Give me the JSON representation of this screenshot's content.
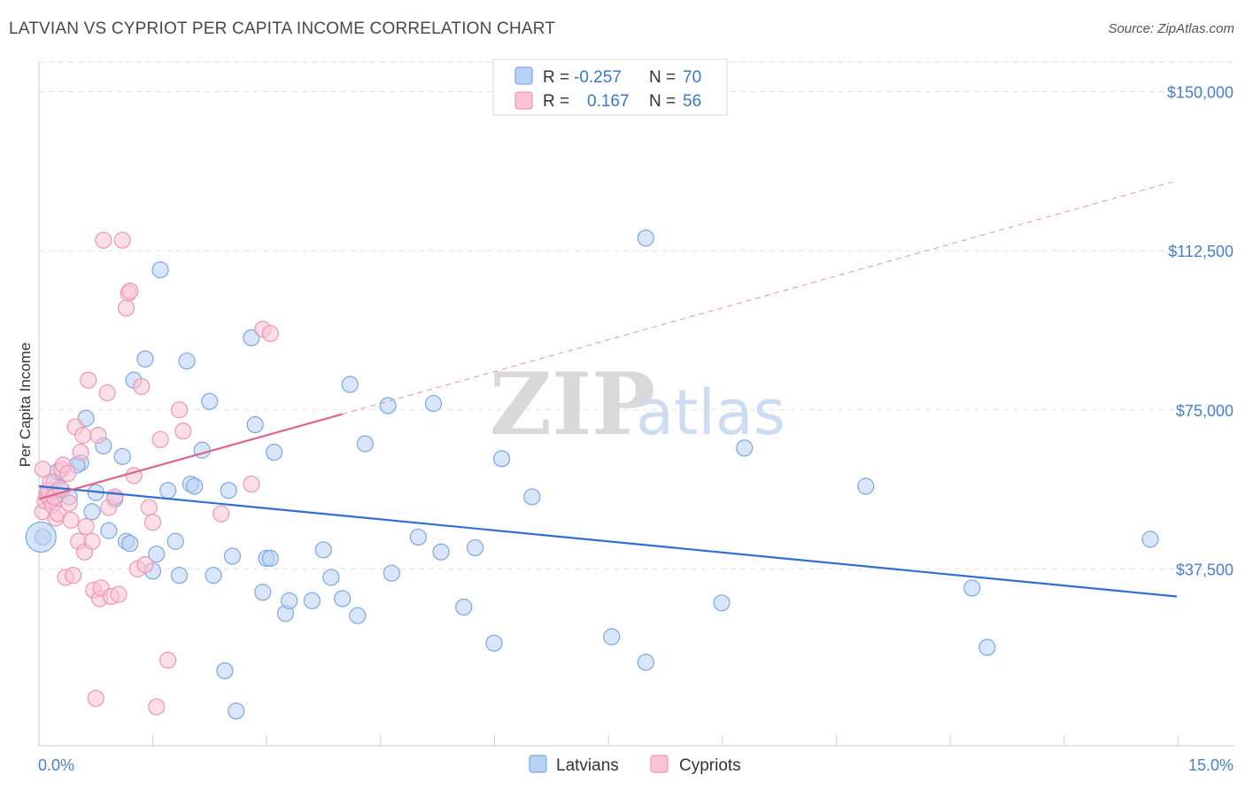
{
  "header": {
    "title": "LATVIAN VS CYPRIOT PER CAPITA INCOME CORRELATION CHART",
    "source": "Source: ZipAtlas.com"
  },
  "watermark": {
    "zip": "ZIP",
    "atlas": "atlas"
  },
  "legend": {
    "rows": [
      {
        "r_label": "R =",
        "r_value": "-0.257",
        "n_label": "N =",
        "n_value": "70"
      },
      {
        "r_label": "R =",
        "r_value": "0.167",
        "n_label": "N =",
        "n_value": "56"
      }
    ]
  },
  "bottom_legend": [
    "Latvians",
    "Cypriots"
  ],
  "colors": {
    "latvians_fill": "#b9d2f4",
    "latvians_stroke": "#7aa8e6",
    "latvians_line": "#2f6fd0",
    "cypriots_fill": "#f9c3d4",
    "cypriots_stroke": "#ee97b4",
    "cypriots_line": "#e0628c",
    "tick_label": "#4a7fc9"
  },
  "chart_data": {
    "type": "scatter",
    "title": "LATVIAN VS CYPRIOT PER CAPITA INCOME CORRELATION CHART",
    "xlabel": "",
    "ylabel": "Per Capita Income",
    "xlim": [
      0,
      15
    ],
    "ylim": [
      0,
      157000
    ],
    "x_tick_labels": [
      "0.0%",
      "15.0%"
    ],
    "y_ticks": [
      37500,
      75000,
      112500,
      150000
    ],
    "y_tick_labels": [
      "$37,500",
      "$75,000",
      "$112,500",
      "$150,000"
    ],
    "grid": true,
    "legend_position": "top-center",
    "series": [
      {
        "name": "Latvians",
        "R": -0.257,
        "N": 70,
        "trend": {
          "x": [
            0,
            15
          ],
          "y": [
            57000,
            31000
          ],
          "style": "solid"
        },
        "points": [
          [
            0.05,
            45000
          ],
          [
            0.12,
            55000
          ],
          [
            0.15,
            53500
          ],
          [
            0.2,
            58000
          ],
          [
            0.25,
            60500
          ],
          [
            0.3,
            56000
          ],
          [
            0.55,
            62500
          ],
          [
            0.62,
            73000
          ],
          [
            0.75,
            55500
          ],
          [
            0.7,
            51000
          ],
          [
            0.85,
            66500
          ],
          [
            0.92,
            46500
          ],
          [
            1.0,
            54000
          ],
          [
            1.1,
            64000
          ],
          [
            1.15,
            44000
          ],
          [
            1.2,
            43500
          ],
          [
            1.25,
            82000
          ],
          [
            1.4,
            87000
          ],
          [
            1.5,
            37000
          ],
          [
            1.55,
            41000
          ],
          [
            1.6,
            108000
          ],
          [
            1.7,
            56000
          ],
          [
            1.8,
            44000
          ],
          [
            1.85,
            36000
          ],
          [
            1.95,
            86500
          ],
          [
            2.0,
            57500
          ],
          [
            2.05,
            57000
          ],
          [
            2.15,
            65500
          ],
          [
            2.25,
            77000
          ],
          [
            2.3,
            36000
          ],
          [
            2.45,
            13500
          ],
          [
            2.5,
            56000
          ],
          [
            2.55,
            40500
          ],
          [
            2.6,
            4000
          ],
          [
            2.8,
            92000
          ],
          [
            2.85,
            71500
          ],
          [
            2.95,
            32000
          ],
          [
            3.0,
            40000
          ],
          [
            3.05,
            40000
          ],
          [
            3.1,
            65000
          ],
          [
            3.25,
            27000
          ],
          [
            3.3,
            30000
          ],
          [
            3.6,
            30000
          ],
          [
            3.75,
            42000
          ],
          [
            3.85,
            35500
          ],
          [
            4.0,
            30500
          ],
          [
            4.1,
            81000
          ],
          [
            4.2,
            26500
          ],
          [
            4.3,
            67000
          ],
          [
            4.6,
            76000
          ],
          [
            4.65,
            36500
          ],
          [
            5.0,
            45000
          ],
          [
            5.2,
            76500
          ],
          [
            5.3,
            41500
          ],
          [
            5.6,
            28500
          ],
          [
            5.75,
            42500
          ],
          [
            6.0,
            20000
          ],
          [
            6.1,
            63500
          ],
          [
            6.5,
            54500
          ],
          [
            7.55,
            21500
          ],
          [
            8.0,
            115500
          ],
          [
            8.0,
            15500
          ],
          [
            9.0,
            29500
          ],
          [
            9.3,
            66000
          ],
          [
            10.9,
            57000
          ],
          [
            12.3,
            33000
          ],
          [
            12.5,
            19000
          ],
          [
            14.65,
            44500
          ],
          [
            0.4,
            54500
          ],
          [
            0.5,
            62000
          ]
        ]
      },
      {
        "name": "Cypriots",
        "R": 0.167,
        "N": 56,
        "trend": {
          "x": [
            0,
            4.0
          ],
          "y": [
            54000,
            74000
          ],
          "style": "solid"
        },
        "trend_extension": {
          "x": [
            4.0,
            15
          ],
          "y": [
            74000,
            129000
          ],
          "style": "dashed"
        },
        "points": [
          [
            0.05,
            51000
          ],
          [
            0.08,
            53500
          ],
          [
            0.1,
            55000
          ],
          [
            0.12,
            56000
          ],
          [
            0.15,
            58000
          ],
          [
            0.18,
            52500
          ],
          [
            0.2,
            54500
          ],
          [
            0.22,
            49500
          ],
          [
            0.25,
            50500
          ],
          [
            0.28,
            56500
          ],
          [
            0.3,
            61000
          ],
          [
            0.32,
            62000
          ],
          [
            0.35,
            35500
          ],
          [
            0.38,
            60000
          ],
          [
            0.4,
            53000
          ],
          [
            0.42,
            49000
          ],
          [
            0.45,
            36000
          ],
          [
            0.48,
            71000
          ],
          [
            0.52,
            44000
          ],
          [
            0.55,
            65000
          ],
          [
            0.58,
            69000
          ],
          [
            0.6,
            41500
          ],
          [
            0.62,
            47500
          ],
          [
            0.65,
            82000
          ],
          [
            0.7,
            44000
          ],
          [
            0.72,
            32500
          ],
          [
            0.75,
            7000
          ],
          [
            0.78,
            69000
          ],
          [
            0.8,
            30500
          ],
          [
            0.82,
            33000
          ],
          [
            0.85,
            115000
          ],
          [
            0.9,
            79000
          ],
          [
            0.92,
            52000
          ],
          [
            0.95,
            31000
          ],
          [
            1.0,
            54500
          ],
          [
            1.05,
            31500
          ],
          [
            1.1,
            115000
          ],
          [
            1.15,
            99000
          ],
          [
            1.18,
            102500
          ],
          [
            1.2,
            103000
          ],
          [
            1.25,
            59500
          ],
          [
            1.3,
            37500
          ],
          [
            1.35,
            80500
          ],
          [
            1.4,
            38500
          ],
          [
            1.45,
            52000
          ],
          [
            1.5,
            48500
          ],
          [
            1.55,
            5000
          ],
          [
            1.6,
            68000
          ],
          [
            1.7,
            16000
          ],
          [
            1.85,
            75000
          ],
          [
            1.9,
            70000
          ],
          [
            2.4,
            50500
          ],
          [
            2.8,
            57500
          ],
          [
            2.95,
            94000
          ],
          [
            3.05,
            93000
          ],
          [
            0.05,
            61000
          ]
        ]
      }
    ]
  }
}
